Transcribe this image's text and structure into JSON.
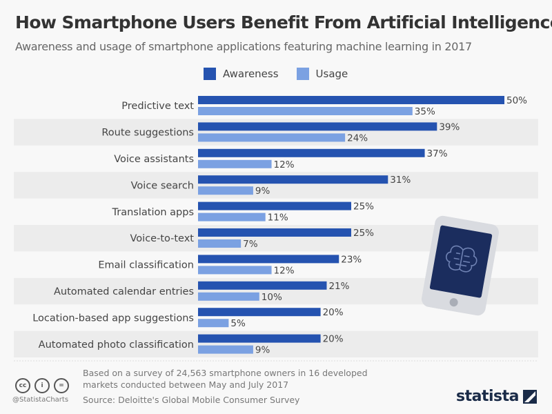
{
  "title": "How Smartphone Users Benefit From Artificial Intelligence",
  "subtitle": "Awareness and usage of smartphone applications featuring machine learning in 2017",
  "colors": {
    "awareness": "#2553b0",
    "usage": "#7ba1e2",
    "stripe": "#ececec",
    "phone_screen": "#1b2d5e"
  },
  "chart_data": {
    "type": "bar",
    "orientation": "horizontal",
    "categories": [
      "Predictive text",
      "Route suggestions",
      "Voice assistants",
      "Voice search",
      "Translation apps",
      "Voice-to-text",
      "Email classification",
      "Automated calendar entries",
      "Location-based app suggestions",
      "Automated photo classification"
    ],
    "series": [
      {
        "name": "Awareness",
        "values": [
          50,
          39,
          37,
          31,
          25,
          25,
          23,
          21,
          20,
          20
        ]
      },
      {
        "name": "Usage",
        "values": [
          35,
          24,
          12,
          9,
          11,
          7,
          12,
          10,
          5,
          9
        ]
      }
    ],
    "value_suffix": "%",
    "legend_position": "top",
    "grid": false
  },
  "footer": {
    "note_line1": "Based on a survey of 24,563 smartphone owners in 16 developed",
    "note_line2": "markets conducted between May and July 2017",
    "source": "Source: Deloitte's Global Mobile Consumer Survey",
    "handle": "@StatistaCharts",
    "logo": "statista",
    "license_icons": [
      "cc",
      "i",
      "="
    ]
  }
}
